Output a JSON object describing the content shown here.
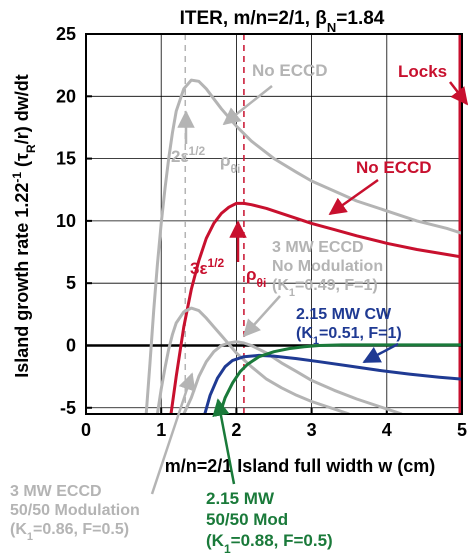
{
  "chart_data": {
    "type": "line",
    "title": "ITER, m/n=2/1, βN=1.84",
    "title_parts": {
      "main": "ITER, m/n=2/1, β",
      "sub": "N",
      "tail": "=1.84"
    },
    "xlabel": "m/n=2/1 Island full width w (cm)",
    "ylabel": "Island growth rate 1.22⁻¹ (τR/r) dw/dt",
    "ylabel_parts": {
      "a": "Island growth rate 1.22",
      "sup": "-1",
      "b": " (τ",
      "sub": "R",
      "c": "/r) dw/dt"
    },
    "xlim": [
      0,
      5
    ],
    "ylim": [
      -5.5,
      25
    ],
    "x_ticks": [
      0,
      1,
      2,
      3,
      4,
      5
    ],
    "y_ticks": [
      -5,
      0,
      5,
      10,
      15,
      20,
      25
    ],
    "x_tick_labels": [
      "0",
      "1",
      "2",
      "3",
      "4",
      "5"
    ],
    "y_tick_labels": [
      "-5",
      "0",
      "5",
      "10",
      "15",
      "20",
      "25"
    ],
    "grid": true,
    "colors": {
      "red": "#c8102e",
      "gray": "#b4b4b4",
      "navy": "#1f3a93",
      "green": "#1a7a3a",
      "black": "#000000"
    },
    "series": [
      {
        "name": "No ECCD",
        "color": "#c8102e",
        "x": [
          1.13,
          1.2,
          1.3,
          1.4,
          1.5,
          1.6,
          1.7,
          1.8,
          1.9,
          2.0,
          2.1,
          2.2,
          2.4,
          2.6,
          2.8,
          3.0,
          3.3,
          3.6,
          4.0,
          4.4,
          4.8,
          5.0
        ],
        "y": [
          -5.5,
          -2.5,
          1.5,
          4.5,
          6.8,
          8.6,
          9.8,
          10.6,
          11.1,
          11.4,
          11.4,
          11.3,
          11.0,
          10.6,
          10.2,
          9.8,
          9.3,
          8.8,
          8.2,
          7.7,
          7.3,
          7.1
        ]
      },
      {
        "name": "No ECCD (gray)",
        "color": "#b4b4b4",
        "x": [
          0.8,
          0.85,
          0.9,
          0.95,
          1.0,
          1.05,
          1.1,
          1.15,
          1.2,
          1.3,
          1.4,
          1.5,
          1.6,
          1.7,
          1.8,
          2.0,
          2.2,
          2.5,
          2.8,
          3.0,
          3.3,
          3.6,
          4.0,
          4.4,
          4.8,
          5.0
        ],
        "y": [
          -5.5,
          -1.5,
          2.8,
          6.5,
          9.8,
          12.6,
          15.0,
          17.1,
          18.8,
          20.6,
          21.3,
          21.2,
          20.6,
          19.8,
          19.0,
          17.6,
          16.4,
          15.0,
          13.9,
          13.2,
          12.4,
          11.6,
          10.8,
          10.0,
          9.4,
          9.0
        ]
      },
      {
        "name": "3 MW ECCD No Modulation",
        "color": "#b4b4b4",
        "x": [
          0.95,
          1.0,
          1.05,
          1.1,
          1.15,
          1.2,
          1.3,
          1.4,
          1.5,
          1.6,
          1.7,
          1.8,
          1.9,
          2.0,
          2.2,
          2.4,
          2.6,
          2.8,
          3.0,
          3.2,
          3.5
        ],
        "y": [
          -5.5,
          -3.5,
          -1.8,
          -0.3,
          0.9,
          1.8,
          2.7,
          3.0,
          2.8,
          2.2,
          1.5,
          0.8,
          0.1,
          -0.6,
          -1.7,
          -2.7,
          -3.4,
          -4.0,
          -4.5,
          -4.9,
          -5.5
        ]
      },
      {
        "name": "3 MW ECCD 50/50 Modulation",
        "color": "#b4b4b4",
        "x": [
          1.3,
          1.4,
          1.5,
          1.6,
          1.7,
          1.8,
          1.9,
          2.0,
          2.1,
          2.2,
          2.4,
          2.6,
          2.8,
          3.0,
          3.3,
          3.6,
          3.9,
          4.2
        ],
        "y": [
          -5.5,
          -4.2,
          -2.5,
          -1.3,
          -0.5,
          0.0,
          0.2,
          0.3,
          0.2,
          0.0,
          -0.6,
          -1.4,
          -2.1,
          -2.8,
          -3.6,
          -4.3,
          -4.9,
          -5.5
        ]
      },
      {
        "name": "2.15 MW CW",
        "color": "#1f3a93",
        "x": [
          1.58,
          1.65,
          1.75,
          1.85,
          1.95,
          2.1,
          2.3,
          2.5,
          2.8,
          3.1,
          3.5,
          3.9,
          4.3,
          4.7,
          5.0
        ],
        "y": [
          -5.5,
          -4.0,
          -2.6,
          -1.7,
          -1.2,
          -0.9,
          -0.8,
          -0.85,
          -1.05,
          -1.3,
          -1.65,
          -2.0,
          -2.3,
          -2.55,
          -2.7
        ]
      },
      {
        "name": "2.15 MW 50/50 Mod",
        "color": "#1a7a3a",
        "x": [
          1.78,
          1.85,
          1.95,
          2.05,
          2.15,
          2.3,
          2.5,
          2.7,
          2.9,
          3.1,
          3.4,
          3.7,
          4.1,
          4.5,
          5.0
        ],
        "y": [
          -5.5,
          -4.2,
          -3.0,
          -2.1,
          -1.5,
          -0.9,
          -0.5,
          -0.25,
          -0.1,
          0.0,
          0.05,
          0.05,
          0.05,
          0.05,
          0.05
        ]
      }
    ],
    "vlines": [
      {
        "x": 1.32,
        "color": "#b4b4b4",
        "dashed": true
      },
      {
        "x": 2.1,
        "color": "#c8102e",
        "dashed": true
      },
      {
        "x": 4.98,
        "color": "#c8102e",
        "dashed": false
      }
    ],
    "annotations": {
      "locks": "Locks",
      "no_eccd_red": "No ECCD",
      "no_eccd_gray": "No ECCD",
      "two_eps_base": "2ε",
      "two_eps_sup": "1/2",
      "rho_base": "ρ",
      "rho_sub": "θi",
      "three_eps_base": "3ε",
      "three_eps_sup": "1/2",
      "eccd3_line1": "3 MW ECCD",
      "eccd3_line2": "No Modulation",
      "eccd3_line3_a": "(K",
      "eccd3_line3_sub": "1",
      "eccd3_line3_b": "=0.49, F=1)",
      "cw_line1": "2.15 MW CW",
      "cw_line2_a": "(K",
      "cw_line2_sub": "1",
      "cw_line2_b": "=0.51, F=1)",
      "mod3_line1": "3 MW ECCD",
      "mod3_line2": "50/50 Modulation",
      "mod3_line3_a": "(K",
      "mod3_line3_sub": "1",
      "mod3_line3_b": "=0.86, F=0.5)",
      "mod215_line1": "2.15 MW",
      "mod215_line2": "50/50 Mod",
      "mod215_line3_a": "(K",
      "mod215_line3_sub": "1",
      "mod215_line3_b": "=0.88, F=0.5)"
    }
  }
}
